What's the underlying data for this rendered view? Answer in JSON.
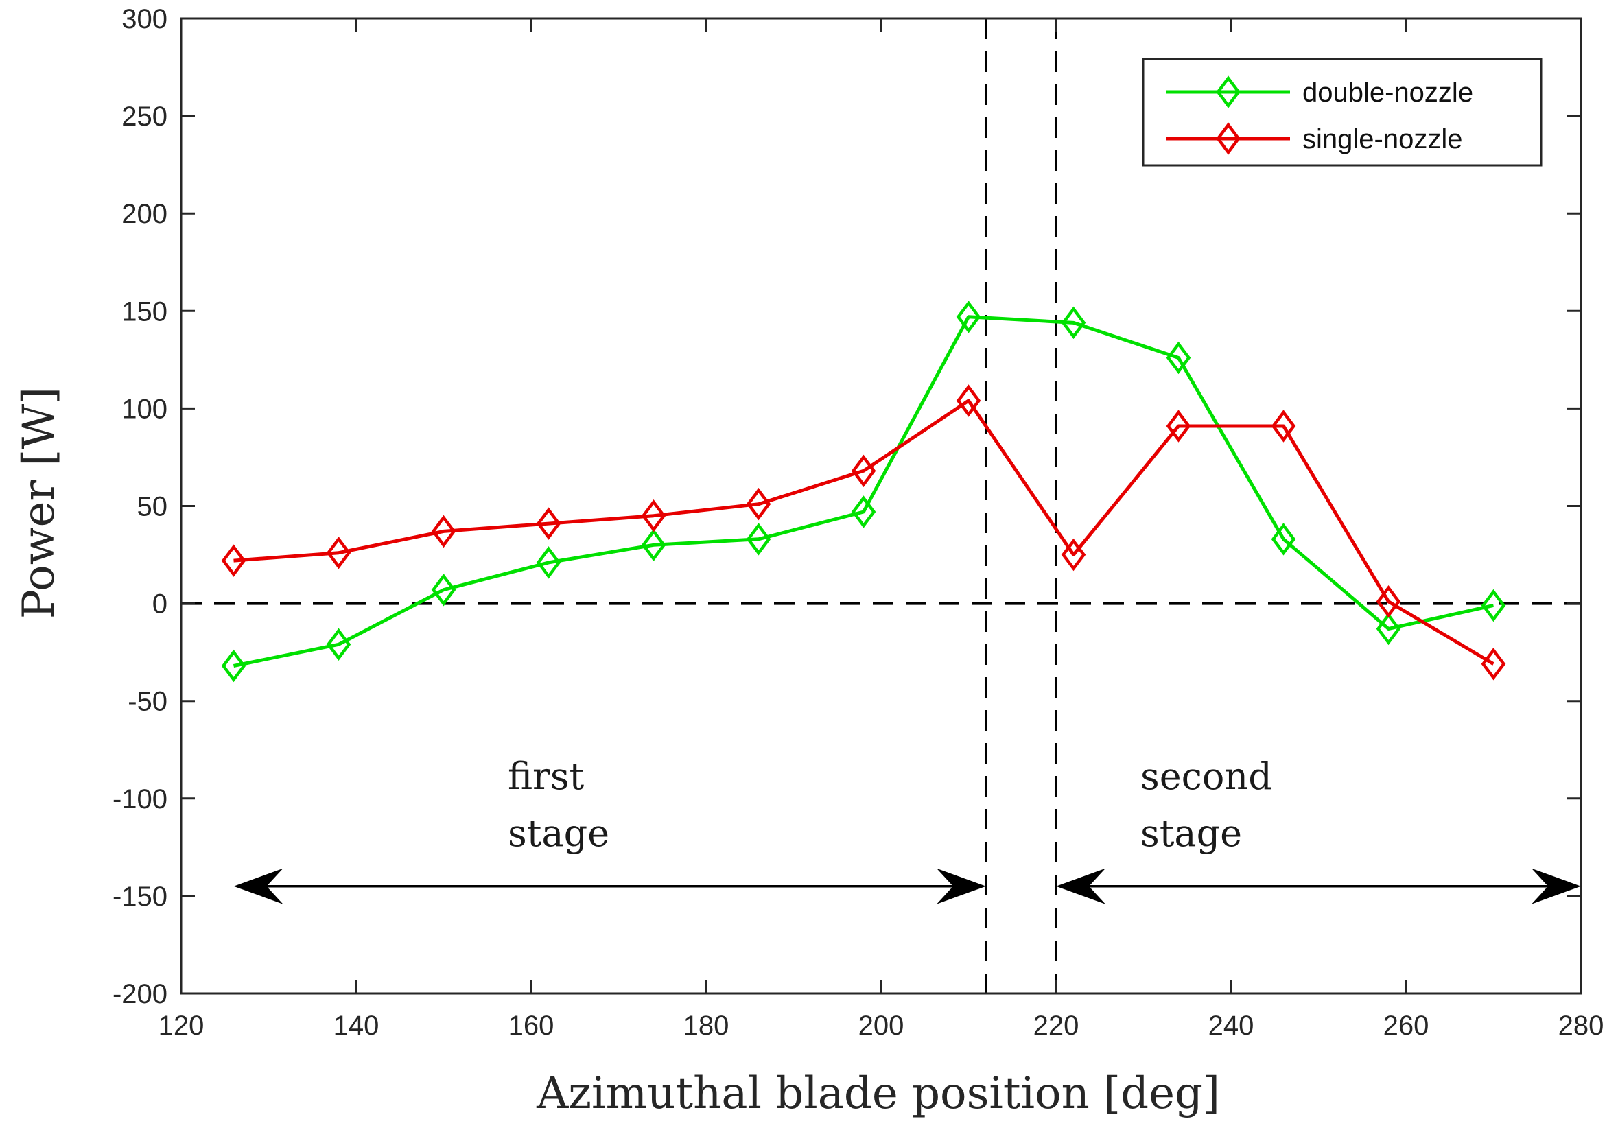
{
  "chart_data": {
    "type": "line",
    "title": "",
    "xlabel": "Azimuthal blade position [deg]",
    "ylabel": "Power [W]",
    "xlim": [
      120,
      280
    ],
    "ylim": [
      -200,
      300
    ],
    "xticks": [
      120,
      140,
      160,
      180,
      200,
      220,
      240,
      260,
      280
    ],
    "yticks": [
      -200,
      -150,
      -100,
      -50,
      0,
      50,
      100,
      150,
      200,
      250,
      300
    ],
    "x": [
      126,
      138,
      150,
      162,
      174,
      186,
      198,
      210,
      222,
      234,
      246,
      258,
      270
    ],
    "series": [
      {
        "name": "double-nozzle",
        "color": "#00e000",
        "marker": "diamond",
        "values": [
          -32,
          -21,
          7,
          21,
          30,
          33,
          47,
          147,
          144,
          126,
          33,
          -13,
          -1
        ]
      },
      {
        "name": "single-nozzle",
        "color": "#e60000",
        "marker": "diamond",
        "values": [
          22,
          26,
          37,
          41,
          45,
          51,
          68,
          104,
          25,
          91,
          91,
          1,
          -31
        ]
      }
    ],
    "reference_lines": {
      "horizontal_y": 0,
      "vertical_x": [
        212,
        220
      ]
    },
    "stage_arrows": [
      {
        "from_x": 126,
        "to_x": 212,
        "y": -145
      },
      {
        "from_x": 220,
        "to_x": 280,
        "y": -145
      }
    ],
    "annotations": {
      "first_stage": [
        "first",
        "stage"
      ],
      "second_stage": [
        "second",
        "stage"
      ]
    },
    "legend_position": "top-right",
    "grid": false
  }
}
